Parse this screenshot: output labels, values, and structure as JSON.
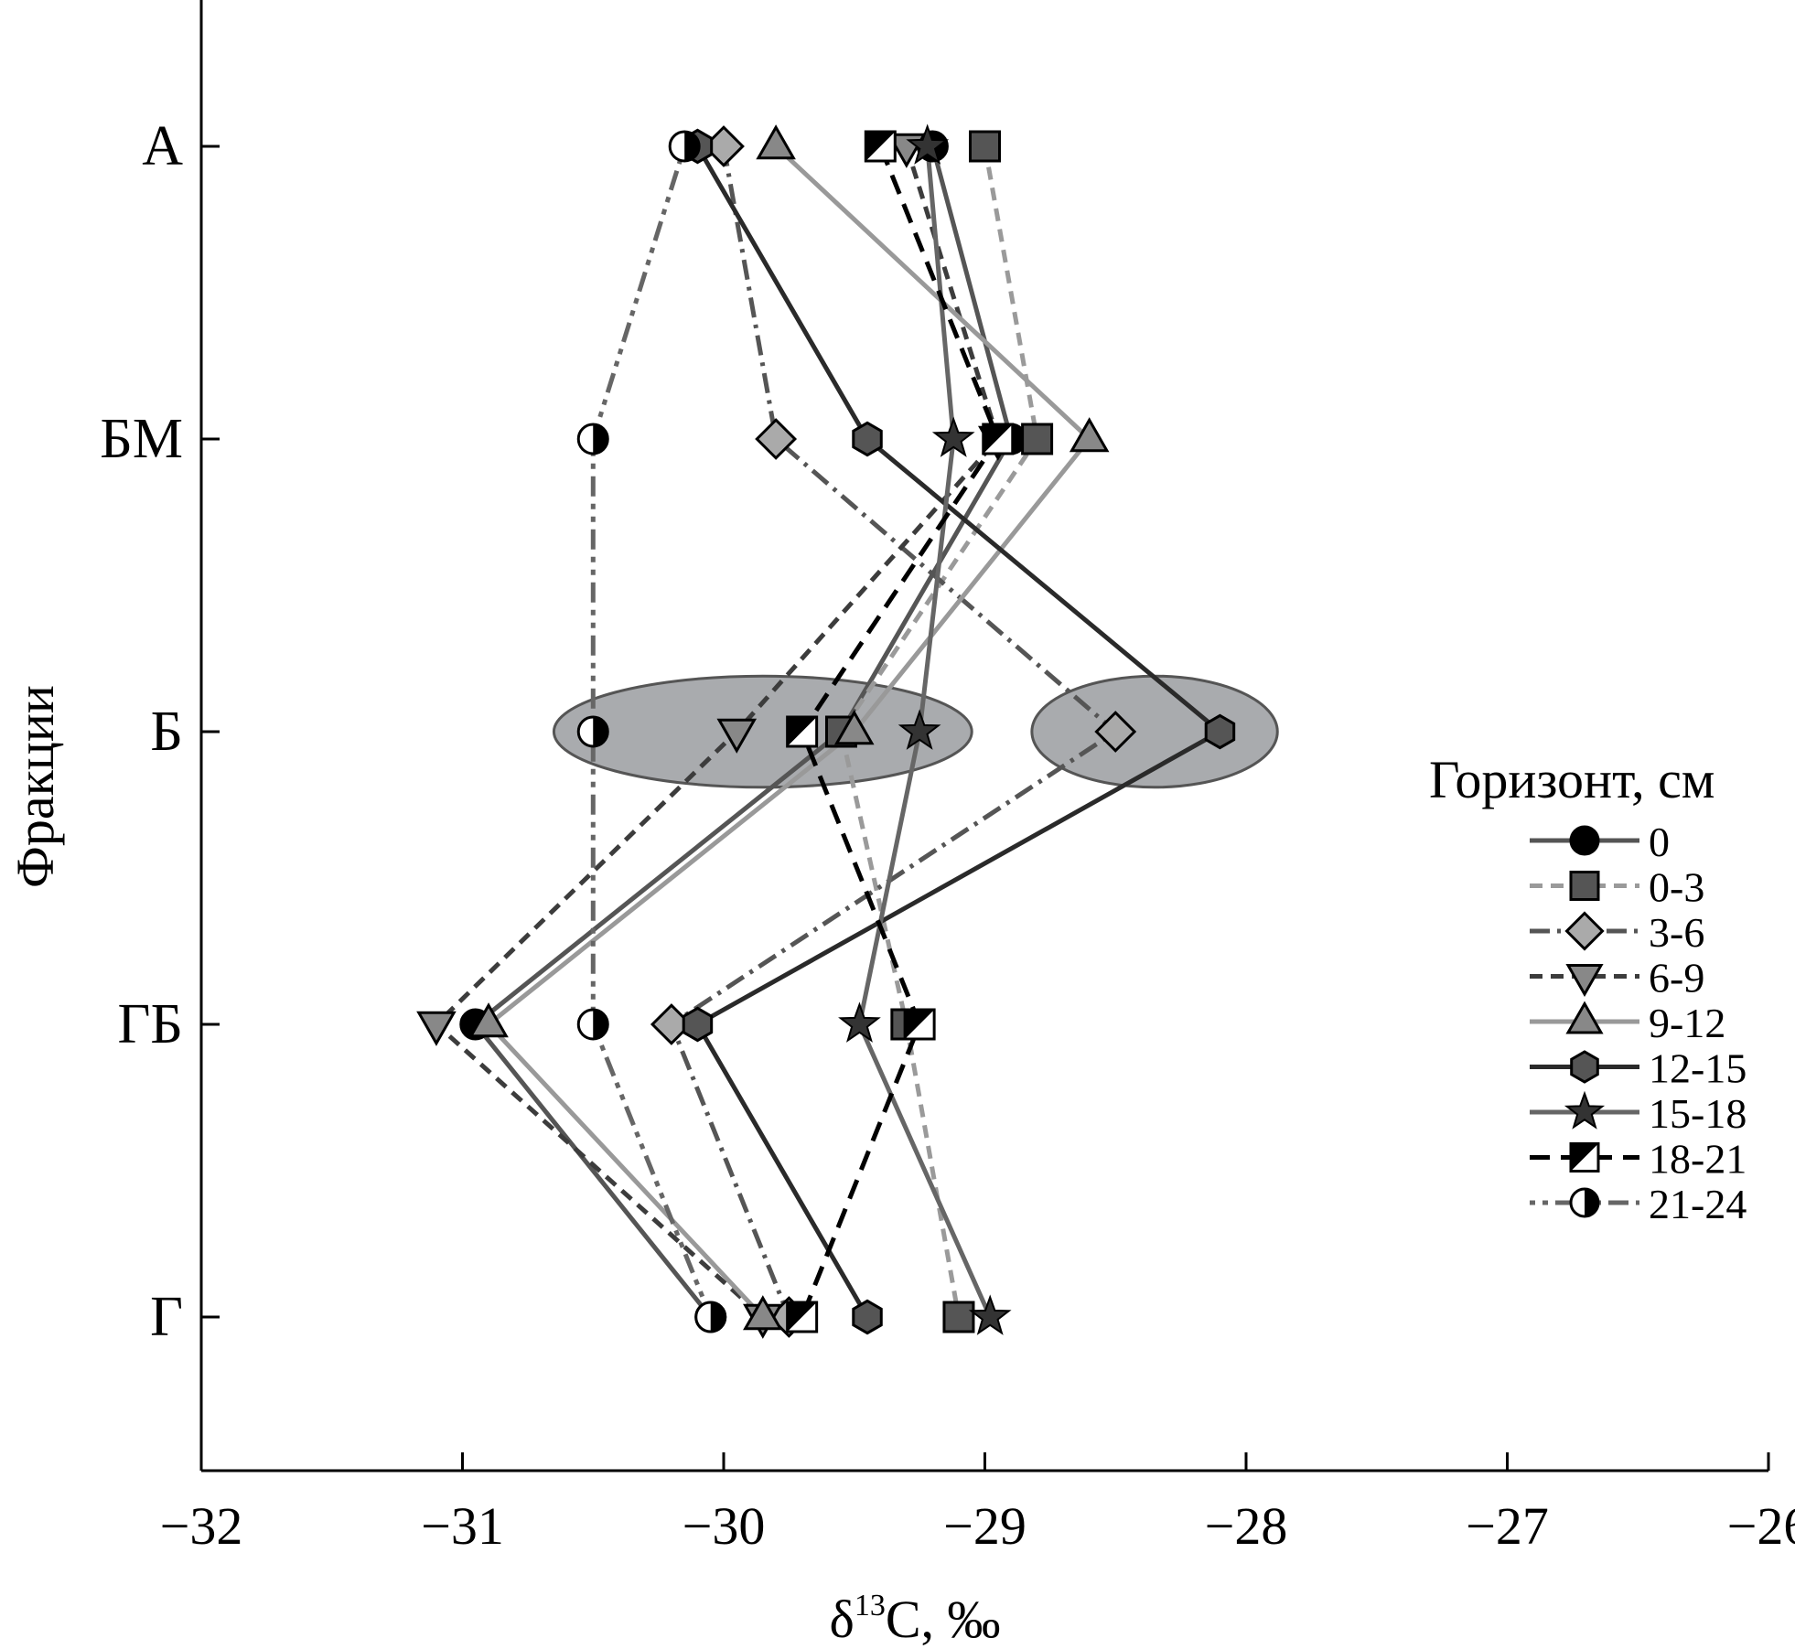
{
  "chart_data": {
    "type": "line",
    "xlabel_main": "δ",
    "xlabel_sup": "13",
    "xlabel_rest": "С, ‰",
    "ylabel": "Фракции",
    "xlim": [
      -32,
      -26
    ],
    "x_ticks": [
      -32,
      -31,
      -30,
      -29,
      -28,
      -27,
      -26
    ],
    "x_tick_labels": [
      "−32",
      "−31",
      "−30",
      "−29",
      "−28",
      "−27",
      "−26"
    ],
    "categories": [
      "А",
      "БМ",
      "Б",
      "ГБ",
      "Г"
    ],
    "legend_title": "Горизонт, см",
    "legend_position": "right",
    "highlight_ellipses": [
      {
        "center_x": -29.85,
        "center_cat": "Б",
        "rx_units": 0.8,
        "ry_cat": 0.19
      },
      {
        "center_x": -28.35,
        "center_cat": "Б",
        "rx_units": 0.47,
        "ry_cat": 0.19
      }
    ],
    "colors": {
      "ellipse_fill": "#a9abae",
      "ellipse_stroke": "#555555",
      "axis": "#000000"
    },
    "series": [
      {
        "name": "0",
        "x": [
          -29.2,
          -28.9,
          -29.55,
          -30.95,
          -30.05
        ],
        "color": "#555555",
        "dash": "",
        "marker": "circle",
        "fill": "#000000"
      },
      {
        "name": "0-3",
        "x": [
          -29.0,
          -28.8,
          -29.55,
          -29.3,
          -29.1
        ],
        "color": "#9a9a9a",
        "dash": "14,9",
        "marker": "square",
        "fill": "#555555"
      },
      {
        "name": "3-6",
        "x": [
          -30.0,
          -29.8,
          -28.5,
          -30.2,
          -29.75
        ],
        "color": "#555555",
        "dash": "22,8,4,8",
        "marker": "diamond",
        "fill": "#aaaaaa"
      },
      {
        "name": "6-9",
        "x": [
          -29.3,
          -28.95,
          -29.95,
          -31.1,
          -29.85
        ],
        "color": "#3c3c3c",
        "dash": "14,9",
        "marker": "triangle-down",
        "fill": "#888888"
      },
      {
        "name": "9-12",
        "x": [
          -29.8,
          -28.6,
          -29.5,
          -30.9,
          -29.85
        ],
        "color": "#999999",
        "dash": "",
        "marker": "triangle-up",
        "fill": "#888888"
      },
      {
        "name": "12-15",
        "x": [
          -30.1,
          -29.45,
          -28.1,
          -30.1,
          -29.45
        ],
        "color": "#2a2a2a",
        "dash": "",
        "marker": "hexagon",
        "fill": "#555555"
      },
      {
        "name": "15-18",
        "x": [
          -29.22,
          -29.12,
          -29.25,
          -29.48,
          -28.98
        ],
        "color": "#666666",
        "dash": "",
        "marker": "star",
        "fill": "#333333"
      },
      {
        "name": "18-21",
        "x": [
          -29.4,
          -28.95,
          -29.7,
          -29.25,
          -29.7
        ],
        "color": "#000000",
        "dash": "22,12",
        "marker": "half-square",
        "fill": "#000000"
      },
      {
        "name": "21-24",
        "x": [
          -30.15,
          -30.5,
          -30.5,
          -30.5,
          -30.05
        ],
        "color": "#666666",
        "dash": "6,8,6,8,22,8",
        "marker": "half-circle",
        "fill": "#000000"
      }
    ]
  }
}
